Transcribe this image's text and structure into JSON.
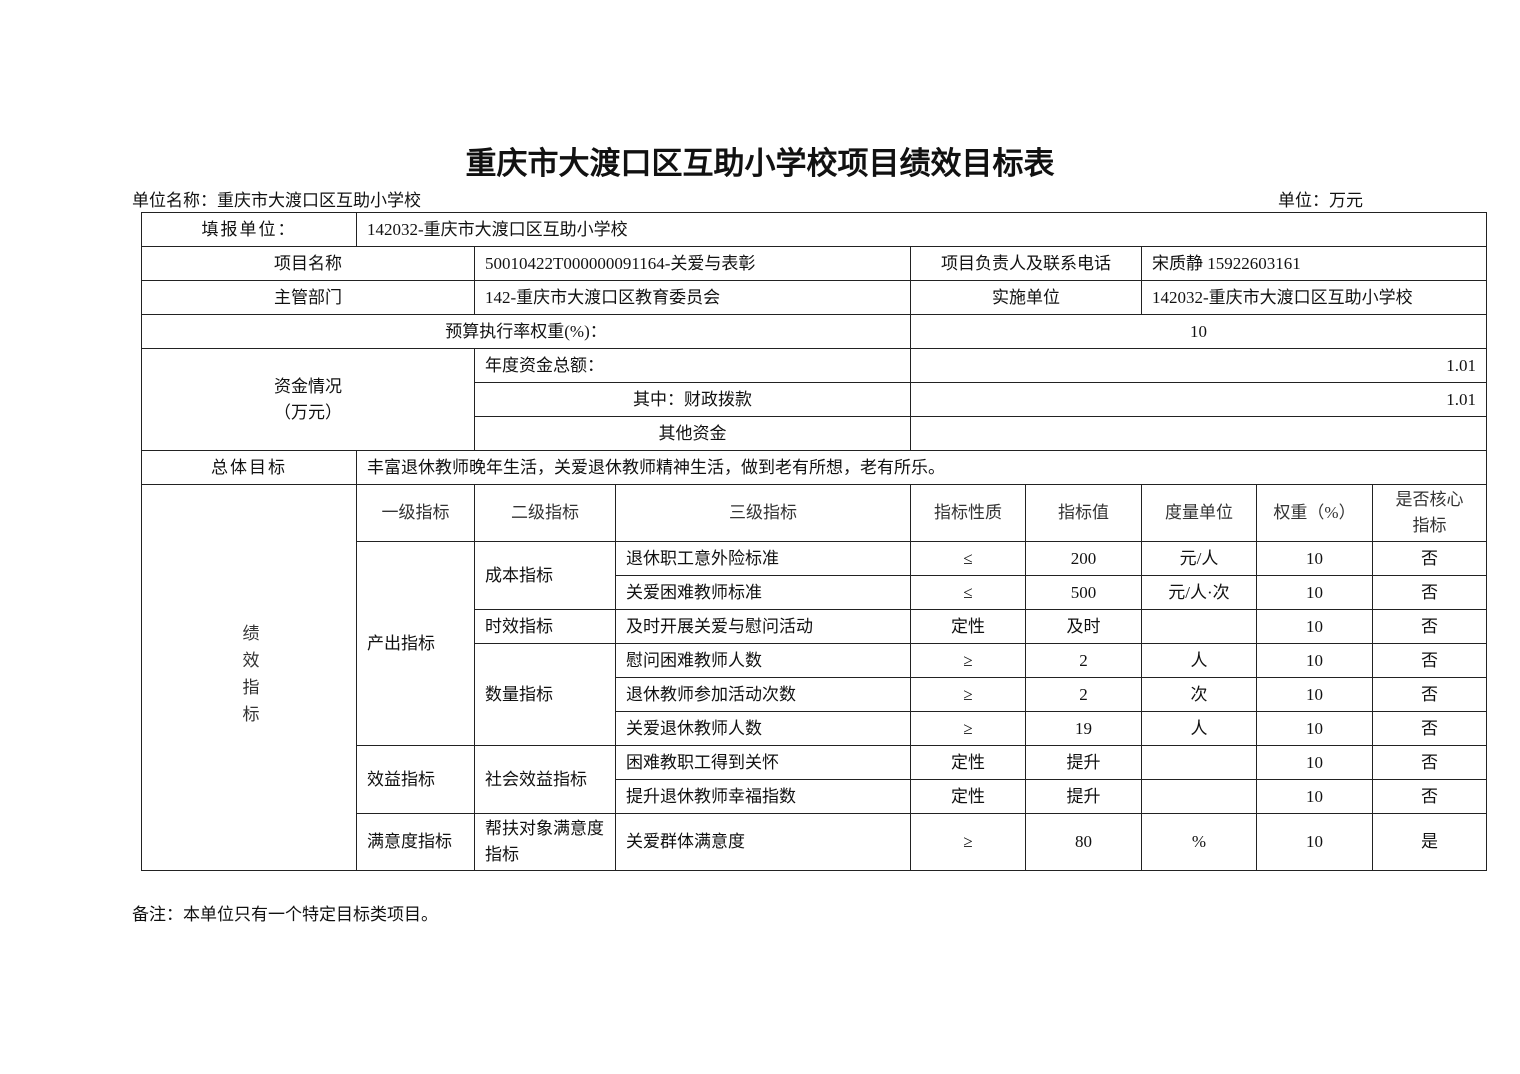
{
  "title": "重庆市大渡口区互助小学校项目绩效目标表",
  "unit_name": "单位名称：重庆市大渡口区互助小学校",
  "unit": "单位：万元",
  "reporting_unit_label": "填报单位：",
  "reporting_unit": "142032-重庆市大渡口区互助小学校",
  "project_name_label": "项目名称",
  "project_name": "50010422T000000091164-关爱与表彰",
  "contact_label": "项目负责人及联系电话",
  "contact": "宋质静 15922603161",
  "dept_label": "主管部门",
  "dept": "142-重庆市大渡口区教育委员会",
  "impl_label": "实施单位",
  "impl": "142032-重庆市大渡口区互助小学校",
  "budget_weight_label": "预算执行率权重(%)：",
  "budget_weight": "10",
  "funds_label": "资金情况",
  "funds_unit": "（万元）",
  "annual_total_label": "年度资金总额：",
  "annual_total": "1.01",
  "fiscal_label": "其中：财政拨款",
  "fiscal": "1.01",
  "other_label": "其他资金",
  "other": "",
  "goal_label": "总体目标",
  "goal": "丰富退休教师晚年生活，关爱退休教师精神生活，做到老有所想，老有所乐。",
  "perf_label": "绩效指标",
  "headers": [
    "一级指标",
    "二级指标",
    "三级指标",
    "指标性质",
    "指标值",
    "度量单位",
    "权重（%）",
    "是否核心指标"
  ],
  "level1": [
    "产出指标",
    "效益指标",
    "满意度指标"
  ],
  "level2": [
    "成本指标",
    "时效指标",
    "数量指标",
    "社会效益指标",
    "帮扶对象满意度指标"
  ],
  "rows": [
    {
      "name": "退休职工意外险标准",
      "nature": "≤",
      "value": "200",
      "unit": "元/人",
      "weight": "10",
      "core": "否"
    },
    {
      "name": "关爱困难教师标准",
      "nature": "≤",
      "value": "500",
      "unit": "元/人·次",
      "weight": "10",
      "core": "否"
    },
    {
      "name": "及时开展关爱与慰问活动",
      "nature": "定性",
      "value": "及时",
      "unit": "",
      "weight": "10",
      "core": "否"
    },
    {
      "name": "慰问困难教师人数",
      "nature": "≥",
      "value": "2",
      "unit": "人",
      "weight": "10",
      "core": "否"
    },
    {
      "name": "退休教师参加活动次数",
      "nature": "≥",
      "value": "2",
      "unit": "次",
      "weight": "10",
      "core": "否"
    },
    {
      "name": "关爱退休教师人数",
      "nature": "≥",
      "value": "19",
      "unit": "人",
      "weight": "10",
      "core": "否"
    },
    {
      "name": "困难教职工得到关怀",
      "nature": "定性",
      "value": "提升",
      "unit": "",
      "weight": "10",
      "core": "否"
    },
    {
      "name": "提升退休教师幸福指数",
      "nature": "定性",
      "value": "提升",
      "unit": "",
      "weight": "10",
      "core": "否"
    },
    {
      "name": "关爱群体满意度",
      "nature": "≥",
      "value": "80",
      "unit": "%",
      "weight": "10",
      "core": "是"
    }
  ],
  "note": "备注：本单位只有一个特定目标类项目。"
}
